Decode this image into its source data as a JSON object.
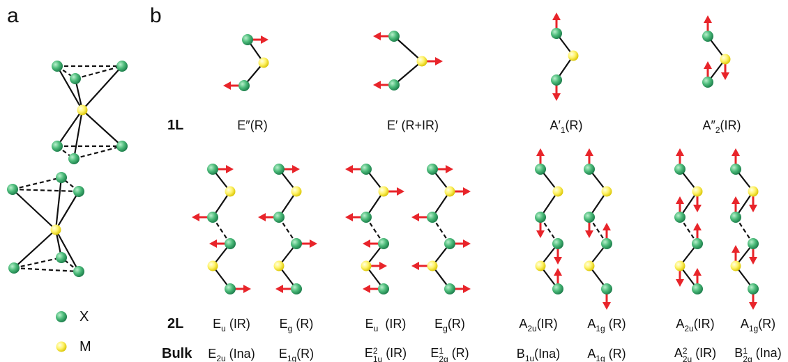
{
  "panels": {
    "a": "a",
    "b": "b"
  },
  "legend": {
    "x": "X",
    "m": "M"
  },
  "row_labels": [
    "1L",
    "2L",
    "Bulk"
  ],
  "modes_1L": [
    {
      "base": "E″",
      "suffix": "(R)"
    },
    {
      "base": "E′",
      "suffix": " (R+IR)"
    },
    {
      "base": "A′",
      "sub": "1",
      "suffix": "(R)"
    },
    {
      "base": "A″",
      "sub": "2",
      "suffix": "(IR)"
    }
  ],
  "modes_2L": [
    {
      "base": "E",
      "sub": "u",
      "suffix": " (IR)"
    },
    {
      "base": "E",
      "sub": "g",
      "suffix": " (R)"
    },
    {
      "base": "E",
      "sub": "u",
      "suffix": "  (IR)"
    },
    {
      "base": "E",
      "sub": "g",
      "suffix": "(R)"
    },
    {
      "base": "A",
      "sub": "2u",
      "suffix": "(IR)"
    },
    {
      "base": "A",
      "sub": "1g",
      "suffix": " (R)"
    },
    {
      "base": "A",
      "sub": "2u",
      "suffix": "(IR)"
    },
    {
      "base": "A",
      "sub": "1g",
      "suffix": "(R)"
    }
  ],
  "modes_bulk": [
    {
      "base": "E",
      "sub": "2u",
      "suffix": " (Ina)"
    },
    {
      "base": "E",
      "sub": "1g",
      "suffix": "(R)"
    },
    {
      "base": "E",
      "sup": "2",
      "sub": "1u",
      "suffix": " (IR)"
    },
    {
      "base": "E",
      "sup": "1",
      "sub": "2g",
      "suffix": " (R)"
    },
    {
      "base": "B",
      "sub": "1u",
      "suffix": "(Ina)"
    },
    {
      "base": "A",
      "sub": "1g",
      "suffix": " (R)"
    },
    {
      "base": "A",
      "sup": "2",
      "sub": "2u",
      "suffix": " (IR)"
    },
    {
      "base": "B",
      "sup": "1",
      "sub": "2g",
      "suffix": " (Ina)"
    }
  ]
}
